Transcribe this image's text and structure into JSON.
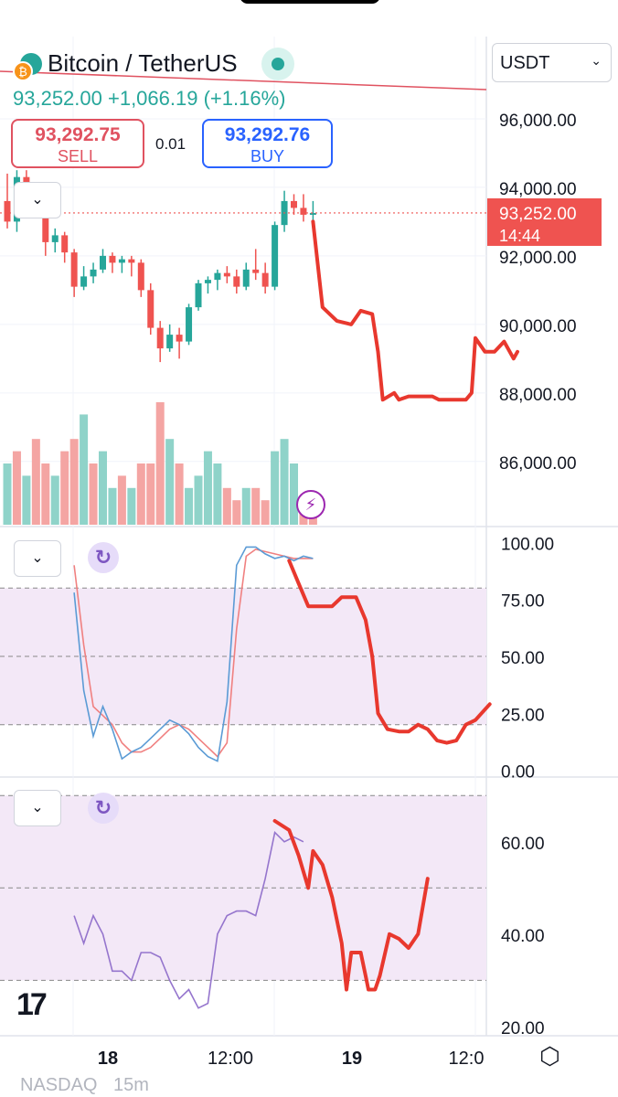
{
  "header": {
    "symbol_title": "Bitcoin / TetherUS",
    "price_line": "93,252.00 +1,066.19 (+1.16%)",
    "sell_price": "93,292.75",
    "sell_label": "SELL",
    "buy_price": "93,292.76",
    "buy_label": "BUY",
    "spread": "0.01",
    "currency": "USDT",
    "icons": [
      "bitcoin-icon",
      "live-status-icon",
      "chevron-down-icon",
      "refresh-icon",
      "lightning-icon",
      "tradingview-logo",
      "settings-icon"
    ]
  },
  "footer": {
    "exchange": "NASDAQ",
    "interval": "15m"
  },
  "colors": {
    "up": "#26a69a",
    "down": "#ef5350",
    "annotation": "#e8382e",
    "stoch_k": "#5b9bd5",
    "stoch_d": "#f08080",
    "rsi": "#9575cd",
    "band": "#f3e8f7"
  },
  "chart_data": [
    {
      "type": "candlestick",
      "price_axis_ticks": [
        "96,000.00",
        "94,000.00",
        "92,000.00",
        "90,000.00",
        "88,000.00",
        "86,000.00"
      ],
      "last_price_label": "93,252.00",
      "countdown_label": "14:44",
      "ylim": [
        84100,
        98400
      ],
      "x_ticks": [
        "18",
        "12:00",
        "19",
        "12:0"
      ],
      "candles": [
        [
          93600,
          94400,
          92800,
          93000
        ],
        [
          93000,
          94500,
          92700,
          94300
        ],
        [
          94300,
          94500,
          93600,
          93800
        ],
        [
          93800,
          94000,
          93400,
          93600
        ],
        [
          93600,
          93700,
          92000,
          92400
        ],
        [
          92400,
          92800,
          92100,
          92600
        ],
        [
          92600,
          92700,
          91800,
          92100
        ],
        [
          92100,
          92200,
          90800,
          91100
        ],
        [
          91100,
          91700,
          91000,
          91400
        ],
        [
          91400,
          91800,
          91200,
          91600
        ],
        [
          91600,
          92200,
          91500,
          92000
        ],
        [
          92000,
          92100,
          91500,
          91800
        ],
        [
          91800,
          92000,
          91500,
          91900
        ],
        [
          91900,
          92000,
          91400,
          91800
        ],
        [
          91800,
          91900,
          90800,
          91000
        ],
        [
          91000,
          91200,
          89700,
          89900
        ],
        [
          89900,
          90100,
          88900,
          89300
        ],
        [
          89300,
          90000,
          89200,
          89700
        ],
        [
          89700,
          89900,
          89000,
          89500
        ],
        [
          89500,
          90600,
          89400,
          90500
        ],
        [
          90500,
          91300,
          90400,
          91200
        ],
        [
          91200,
          91400,
          90900,
          91300
        ],
        [
          91300,
          91600,
          91000,
          91500
        ],
        [
          91500,
          91700,
          91200,
          91400
        ],
        [
          91400,
          91600,
          90900,
          91100
        ],
        [
          91100,
          91800,
          91000,
          91600
        ],
        [
          91600,
          92200,
          91300,
          91500
        ],
        [
          91500,
          91800,
          90900,
          91100
        ],
        [
          91100,
          93000,
          91000,
          92900
        ],
        [
          92900,
          93900,
          92700,
          93600
        ],
        [
          93600,
          93800,
          93200,
          93400
        ],
        [
          93400,
          93800,
          93000,
          93200
        ],
        [
          93200,
          93600,
          93000,
          93252
        ]
      ],
      "volume": [
        0.5,
        0.6,
        0.4,
        0.7,
        0.5,
        0.4,
        0.6,
        0.7,
        0.9,
        0.5,
        0.6,
        0.3,
        0.4,
        0.3,
        0.5,
        0.5,
        1.0,
        0.7,
        0.5,
        0.3,
        0.4,
        0.6,
        0.5,
        0.3,
        0.2,
        0.3,
        0.3,
        0.2,
        0.6,
        0.7,
        0.5,
        0.2,
        0.2
      ],
      "volume_up": [
        1,
        0,
        1,
        0,
        0,
        1,
        0,
        0,
        1,
        0,
        1,
        1,
        0,
        1,
        0,
        0,
        0,
        1,
        0,
        1,
        1,
        1,
        1,
        0,
        0,
        1,
        0,
        0,
        1,
        1,
        1,
        0,
        0
      ],
      "forecast_path": [
        [
          32.0,
          93000
        ],
        [
          33.0,
          90500
        ],
        [
          34.5,
          90100
        ],
        [
          36.0,
          90000
        ],
        [
          37.0,
          90400
        ],
        [
          38.2,
          90300
        ],
        [
          38.8,
          89200
        ],
        [
          39.3,
          87800
        ],
        [
          40.5,
          88000
        ],
        [
          41.0,
          87800
        ],
        [
          42.0,
          87900
        ],
        [
          44.5,
          87900
        ],
        [
          45.2,
          87800
        ],
        [
          46.5,
          87800
        ],
        [
          48.0,
          87800
        ],
        [
          48.6,
          88000
        ],
        [
          49.0,
          89600
        ],
        [
          50.0,
          89200
        ],
        [
          51.0,
          89200
        ],
        [
          52.0,
          89500
        ],
        [
          53.0,
          89000
        ],
        [
          53.4,
          89200
        ]
      ]
    },
    {
      "type": "line",
      "indicator": "stochastic",
      "axis_ticks": [
        "100.00",
        "75.00",
        "50.00",
        "25.00",
        "0.00"
      ],
      "ylim": [
        -3,
        107
      ],
      "band": [
        20,
        80
      ],
      "k": [
        78,
        35,
        15,
        28,
        18,
        5,
        8,
        10,
        14,
        18,
        22,
        20,
        16,
        10,
        6,
        4,
        30,
        90,
        98,
        98,
        95,
        93,
        94,
        92,
        94,
        93
      ],
      "d": [
        90,
        55,
        28,
        24,
        20,
        12,
        8,
        8,
        10,
        14,
        18,
        20,
        18,
        14,
        10,
        6,
        12,
        62,
        94,
        97,
        96,
        95,
        94,
        93,
        93,
        93
      ],
      "forecast_path": [
        [
          29.5,
          92
        ],
        [
          30.5,
          82
        ],
        [
          31.5,
          72
        ],
        [
          33.0,
          72
        ],
        [
          34.0,
          72
        ],
        [
          35.0,
          76
        ],
        [
          36.5,
          76
        ],
        [
          37.5,
          66
        ],
        [
          38.2,
          50
        ],
        [
          38.8,
          25
        ],
        [
          39.8,
          18
        ],
        [
          41.0,
          17
        ],
        [
          42.0,
          17
        ],
        [
          43.0,
          20
        ],
        [
          44.0,
          18
        ],
        [
          45.0,
          13
        ],
        [
          46.0,
          12
        ],
        [
          47.0,
          13
        ],
        [
          48.0,
          20
        ],
        [
          49.0,
          22
        ],
        [
          50.5,
          29
        ]
      ]
    },
    {
      "type": "line",
      "indicator": "rsi",
      "axis_ticks": [
        "60.00",
        "40.00",
        "20.00"
      ],
      "ylim": [
        18,
        74
      ],
      "band": [
        30,
        70
      ],
      "values": [
        44,
        38,
        44,
        40,
        32,
        32,
        30,
        36,
        36,
        35,
        30,
        26,
        28,
        24,
        25,
        40,
        44,
        45,
        45,
        44,
        52,
        62,
        60,
        61,
        60
      ],
      "forecast_path": [
        [
          28.0,
          64.5
        ],
        [
          29.5,
          62.5
        ],
        [
          30.5,
          57
        ],
        [
          31.5,
          50
        ],
        [
          32.0,
          58
        ],
        [
          33.0,
          55
        ],
        [
          34.0,
          48
        ],
        [
          35.0,
          38
        ],
        [
          35.5,
          28
        ],
        [
          36.0,
          36
        ],
        [
          37.0,
          36
        ],
        [
          37.5,
          31
        ],
        [
          37.8,
          28
        ],
        [
          38.5,
          28
        ],
        [
          39.0,
          31
        ],
        [
          40.0,
          40
        ],
        [
          41.0,
          39
        ],
        [
          42.0,
          37
        ],
        [
          43.0,
          40
        ],
        [
          44.0,
          52
        ]
      ]
    }
  ]
}
